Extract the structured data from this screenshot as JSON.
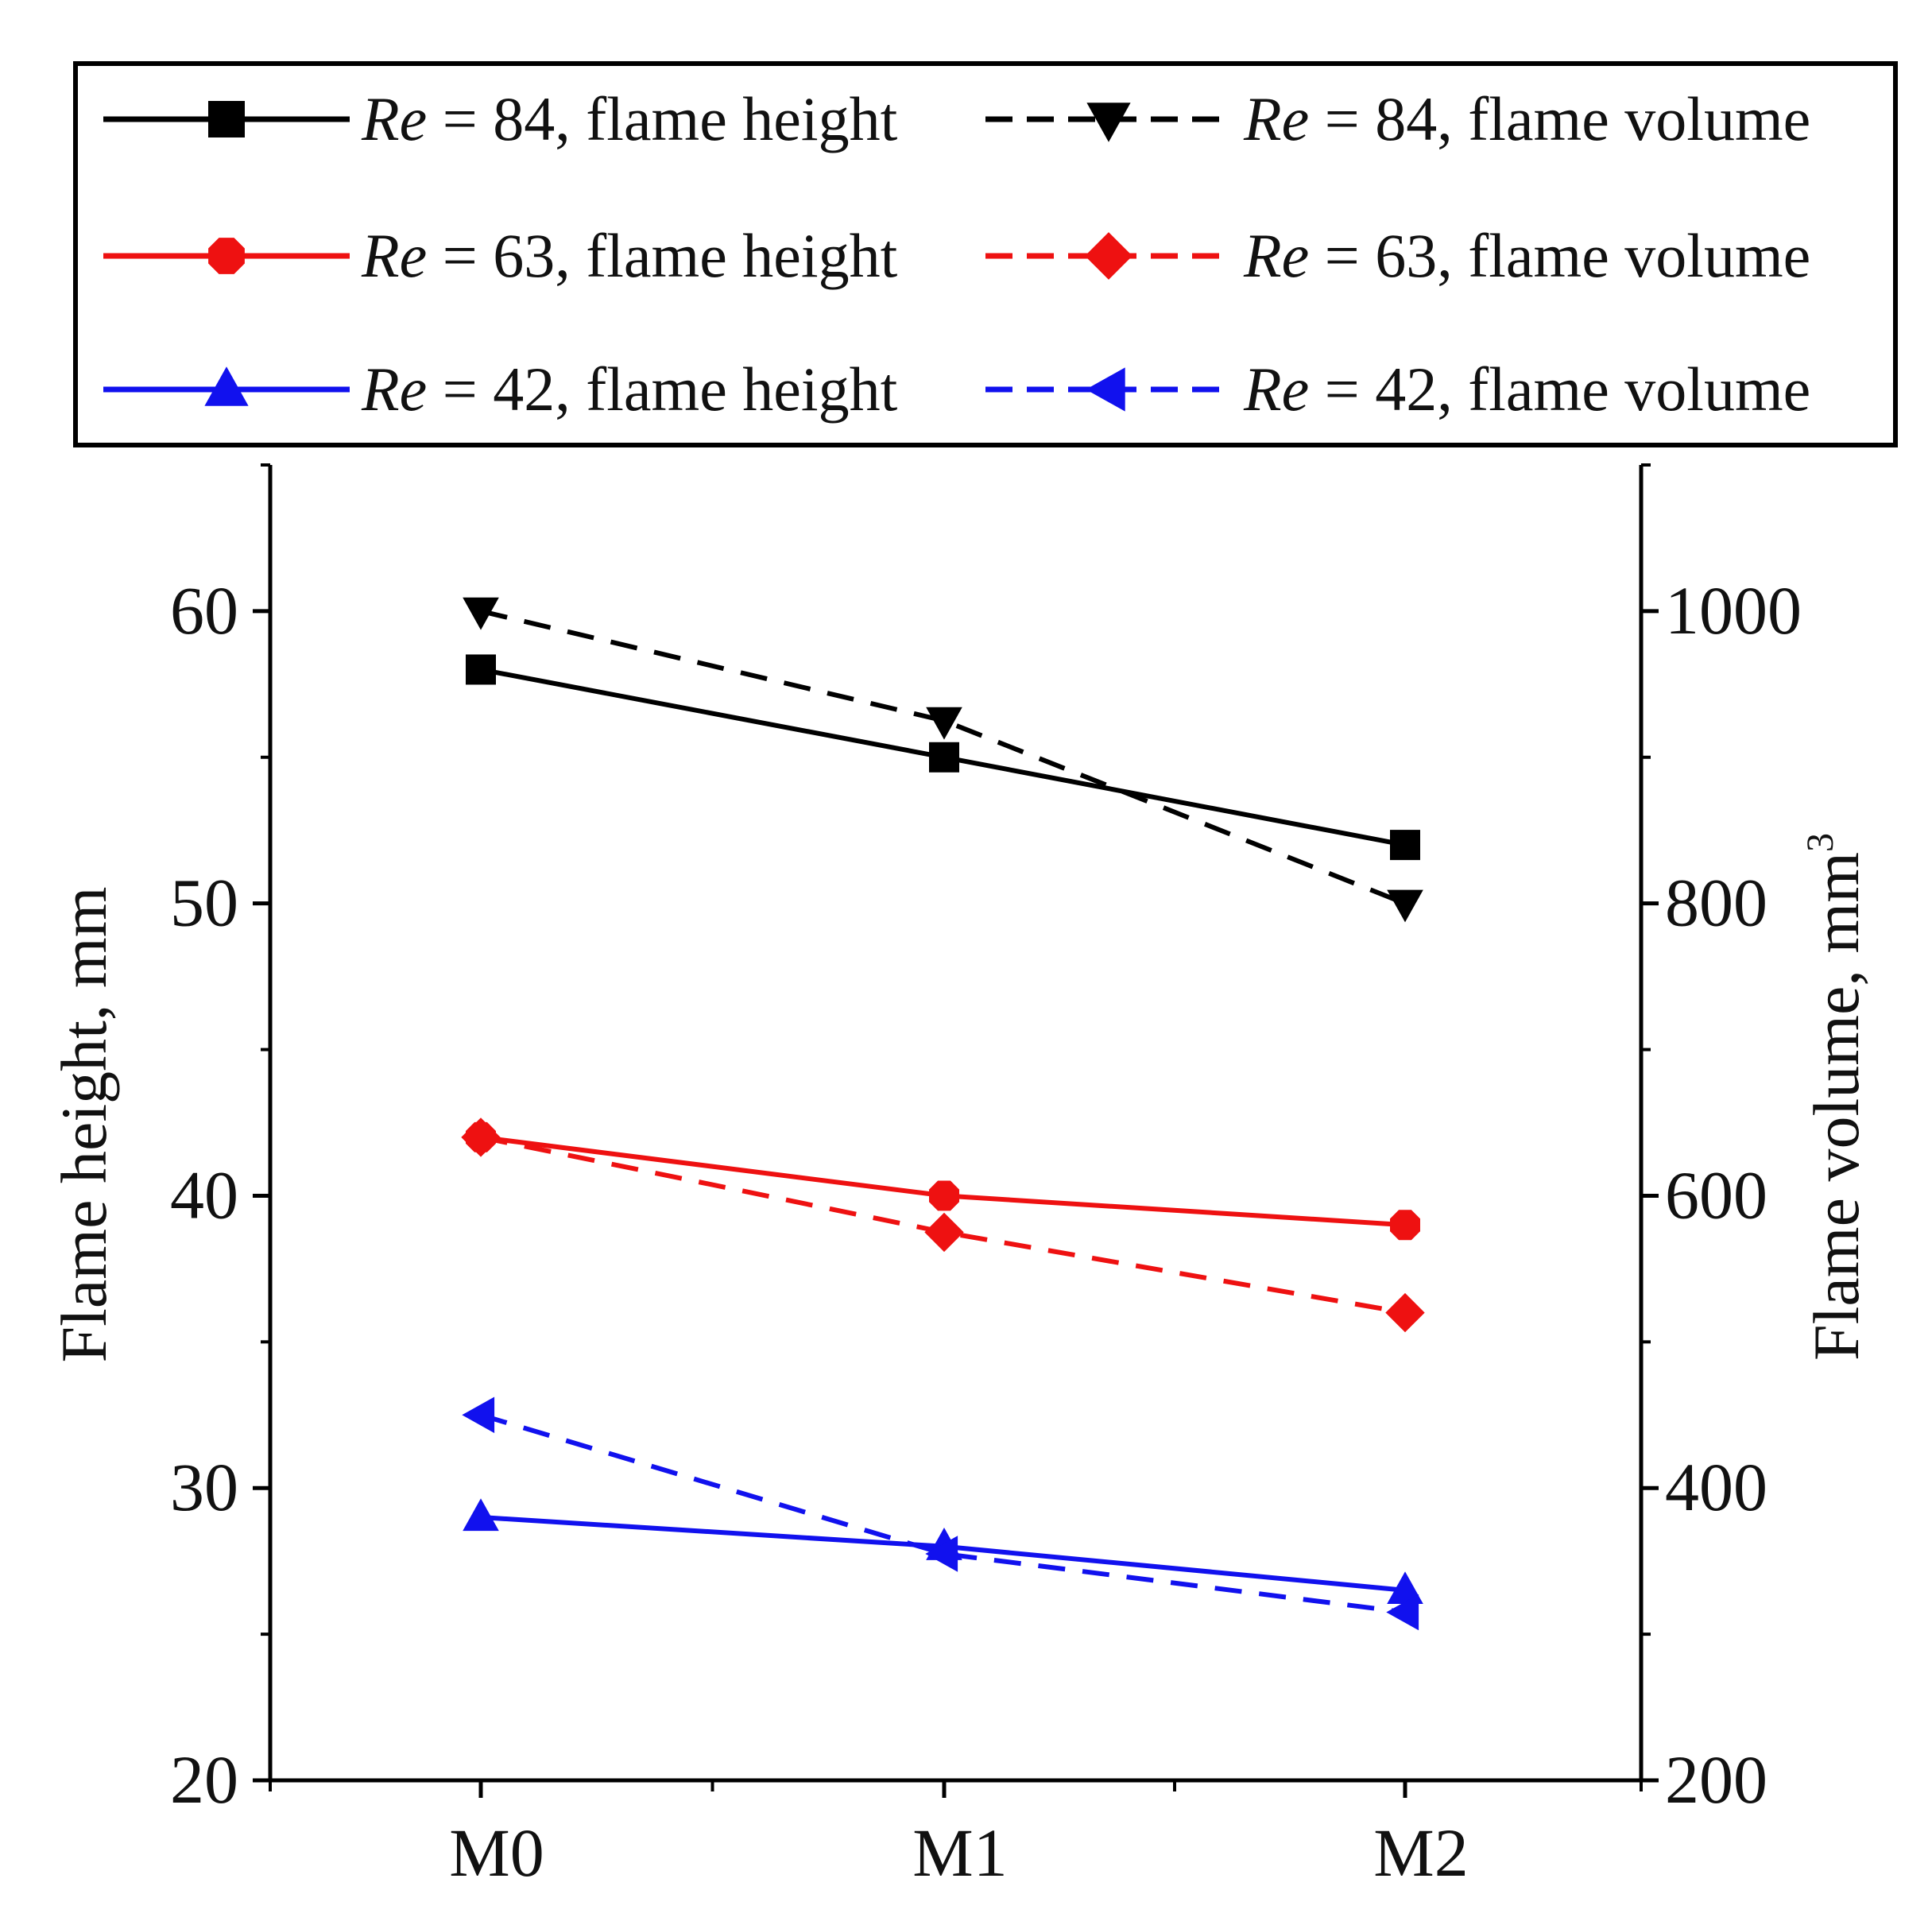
{
  "chart_data": {
    "type": "line",
    "categories": [
      "M0",
      "M1",
      "M2"
    ],
    "y_left": {
      "label": "Flame height, mm",
      "range": [
        20,
        65
      ],
      "ticks": [
        20,
        30,
        40,
        50,
        60
      ],
      "tick_labels": [
        "20",
        "30",
        "40",
        "50",
        "60"
      ]
    },
    "y_right": {
      "label_main": "Flame volume, mm",
      "label_sup": "3",
      "range": [
        200,
        1100
      ],
      "ticks": [
        200,
        400,
        600,
        800,
        1000
      ],
      "tick_labels": [
        "200",
        "400",
        "600",
        "800",
        "1000"
      ]
    },
    "legend_re_symbol": "Re",
    "series": [
      {
        "name": "Re = 84, flame height",
        "re": "84",
        "quantity": "flame height",
        "axis": "left",
        "color": "#000000",
        "dashed": false,
        "marker": "square",
        "values": [
          58,
          55,
          52
        ]
      },
      {
        "name": "Re = 84, flame volume",
        "re": "84",
        "quantity": "flame volume",
        "axis": "right",
        "color": "#000000",
        "dashed": true,
        "marker": "triangle-down",
        "values": [
          1000,
          925,
          800
        ]
      },
      {
        "name": "Re = 63, flame height",
        "re": "63",
        "quantity": "flame height",
        "axis": "left",
        "color": "#ee1111",
        "dashed": false,
        "marker": "circle",
        "values": [
          42,
          40,
          39
        ]
      },
      {
        "name": "Re = 63, flame volume",
        "re": "63",
        "quantity": "flame volume",
        "axis": "right",
        "color": "#ee1111",
        "dashed": true,
        "marker": "diamond",
        "values": [
          640,
          575,
          520
        ]
      },
      {
        "name": "Re = 42, flame height",
        "re": "42",
        "quantity": "flame height",
        "axis": "left",
        "color": "#1111ee",
        "dashed": false,
        "marker": "triangle-up",
        "values": [
          29,
          28,
          26.5
        ]
      },
      {
        "name": "Re = 42, flame volume",
        "re": "42",
        "quantity": "flame volume",
        "axis": "right",
        "color": "#1111ee",
        "dashed": true,
        "marker": "triangle-left",
        "values": [
          450,
          355,
          315
        ]
      }
    ],
    "legend_position": "top"
  }
}
